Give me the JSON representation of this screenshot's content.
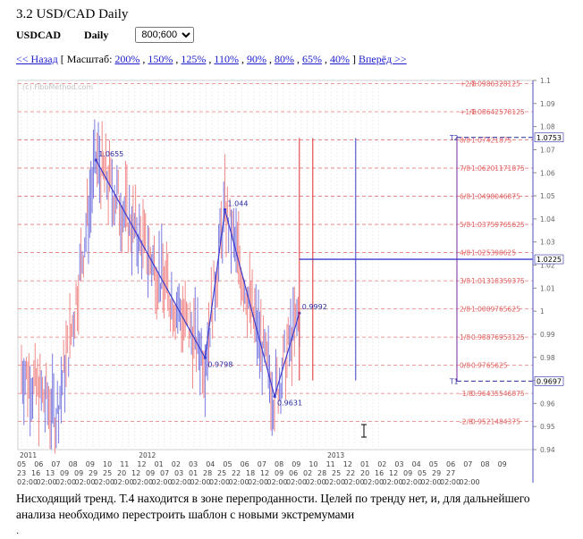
{
  "page": {
    "title": "3.2 USD/CAD Daily"
  },
  "toolbar": {
    "symbol": "USDCAD",
    "timeframe": "Daily",
    "size_value": "800;600"
  },
  "nav": {
    "back": "<< Назад",
    "scale_prefix": "[ Масштаб:",
    "scales": [
      "200%",
      "150%",
      "125%",
      "110%",
      "90%",
      "80%",
      "65%",
      "40%"
    ],
    "scale_suffix": "]",
    "forward": "Вперёд >>"
  },
  "chart_data": {
    "type": "line",
    "watermark": "(c) FiboMethod.com",
    "ylim": [
      0.94,
      1.1
    ],
    "y_ticks": [
      "1.1",
      "1.09",
      "1.08",
      "1.07",
      "1.06",
      "1.05",
      "1.04",
      "1.03",
      "1.02",
      "1.01",
      "1",
      "0.99",
      "0.98",
      "0.97",
      "0.96",
      "0.95",
      "0.94"
    ],
    "fib_levels": [
      {
        "label": "+2/8",
        "value": "1.0986328125",
        "y": 1.09863
      },
      {
        "label": "+1/8",
        "value": "1.08642578125",
        "y": 1.08643
      },
      {
        "label": "8/8",
        "value": "1.07421875",
        "y": 1.07422
      },
      {
        "label": "7/8",
        "value": "1.06201171875",
        "y": 1.06201
      },
      {
        "label": "6/8",
        "value": "1.0498046875",
        "y": 1.0498
      },
      {
        "label": "5/8",
        "value": "1.03759765625",
        "y": 1.0376
      },
      {
        "label": "4/8",
        "value": "1.025390625",
        "y": 1.02539
      },
      {
        "label": "3/8",
        "value": "1.01318359375",
        "y": 1.01318
      },
      {
        "label": "2/8",
        "value": "1.0009765625",
        "y": 1.00098
      },
      {
        "label": "1/8",
        "value": "0.98876953125",
        "y": 0.98877
      },
      {
        "label": "0/8",
        "value": "0.9765625",
        "y": 0.97656
      },
      {
        "label": "-1/8",
        "value": "0.96435546875",
        "y": 0.96436
      },
      {
        "label": "-2/8",
        "value": "0.9521484375",
        "y": 0.95215
      }
    ],
    "pivots": [
      {
        "label": "1.0655",
        "i": 15,
        "y": 1.0655
      },
      {
        "label": "0.9798",
        "i": 37,
        "y": 0.9798
      },
      {
        "label": "1.044",
        "i": 41,
        "y": 1.044
      },
      {
        "label": "0.9631",
        "i": 51,
        "y": 0.9631
      },
      {
        "label": "0.9992",
        "i": 56,
        "y": 0.9992
      }
    ],
    "price_labels": [
      {
        "label": "1.0753",
        "y": 1.0753
      },
      {
        "label": "1.0225",
        "y": 1.0225
      },
      {
        "label": "0.9697",
        "y": 0.9697
      }
    ],
    "targets": [
      {
        "label": "T2",
        "y": 1.0753
      },
      {
        "label": "T1",
        "y": 0.9697
      }
    ],
    "years": [
      {
        "label": "2011",
        "i": 0
      },
      {
        "label": "2012",
        "i": 24
      },
      {
        "label": "2013",
        "i": 62
      }
    ],
    "months": [
      "05",
      "06",
      "07",
      "08",
      "09",
      "10",
      "11",
      "12",
      "01",
      "02",
      "03",
      "04",
      "05",
      "06",
      "07",
      "08",
      "09",
      "10",
      "11",
      "12",
      "01",
      "02",
      "03",
      "04",
      "05",
      "06",
      "07",
      "08",
      "09"
    ],
    "days": [
      "23",
      "16",
      "13",
      "09",
      "09",
      "29",
      "25",
      "20",
      "12",
      "09",
      "07",
      "03",
      "01",
      "28",
      "25",
      "22",
      "18",
      "12",
      "09",
      "06",
      "02",
      "28",
      "25",
      "22",
      "20",
      "16",
      "12",
      "09",
      "05",
      "29",
      "27"
    ],
    "time_row": "02:00",
    "colors": {
      "fib": "#e87878",
      "trend": "#3c3ccc",
      "red_vline": "#e03030",
      "blue_line": "#3c3ccc",
      "candle_up": "#7a7ae0",
      "candle_down": "#f08a8a"
    }
  },
  "description": "Нисходящий тренд. Т.4 находится в зоне перепроданности. Целей по тренду нет, и, для дальнейшего анализа необходимо перестроить шаблон с новыми экстремумами",
  "bullet": "·"
}
